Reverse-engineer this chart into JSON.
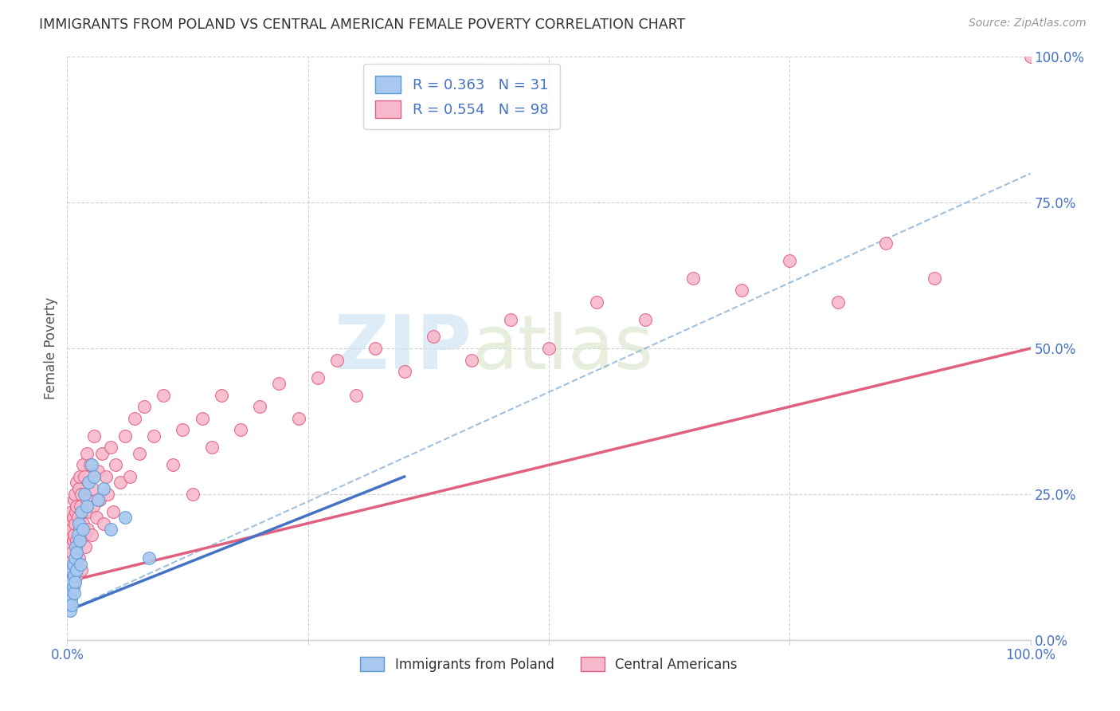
{
  "title": "IMMIGRANTS FROM POLAND VS CENTRAL AMERICAN FEMALE POVERTY CORRELATION CHART",
  "source": "Source: ZipAtlas.com",
  "ylabel": "Female Poverty",
  "xlim": [
    0,
    1
  ],
  "ylim": [
    0,
    1
  ],
  "poland_color_fill": "#a8c8f0",
  "poland_color_edge": "#5b9bd5",
  "central_color_fill": "#f8b8cc",
  "central_color_edge": "#e06080",
  "poland_R": 0.363,
  "poland_N": 31,
  "central_R": 0.554,
  "central_N": 98,
  "label_color": "#4472c4",
  "background_color": "#ffffff",
  "grid_color": "#d0d0d0",
  "dashed_line_color": "#8ab0d8",
  "poland_line_color": "#4472c4",
  "central_line_color": "#e06080",
  "watermark_color": "#d0e4f4",
  "poland_x": [
    0.002,
    0.003,
    0.004,
    0.004,
    0.005,
    0.005,
    0.006,
    0.006,
    0.007,
    0.007,
    0.008,
    0.008,
    0.009,
    0.01,
    0.01,
    0.011,
    0.012,
    0.013,
    0.014,
    0.015,
    0.016,
    0.018,
    0.02,
    0.022,
    0.025,
    0.028,
    0.032,
    0.038,
    0.045,
    0.06,
    0.085
  ],
  "poland_y": [
    0.08,
    0.05,
    0.07,
    0.1,
    0.06,
    0.12,
    0.09,
    0.13,
    0.11,
    0.08,
    0.14,
    0.1,
    0.16,
    0.12,
    0.15,
    0.18,
    0.2,
    0.17,
    0.13,
    0.22,
    0.19,
    0.25,
    0.23,
    0.27,
    0.3,
    0.28,
    0.24,
    0.26,
    0.19,
    0.21,
    0.14
  ],
  "central_x": [
    0.002,
    0.002,
    0.003,
    0.003,
    0.004,
    0.004,
    0.004,
    0.005,
    0.005,
    0.005,
    0.005,
    0.006,
    0.006,
    0.006,
    0.007,
    0.007,
    0.007,
    0.008,
    0.008,
    0.008,
    0.009,
    0.009,
    0.01,
    0.01,
    0.01,
    0.01,
    0.011,
    0.011,
    0.012,
    0.012,
    0.013,
    0.013,
    0.014,
    0.014,
    0.015,
    0.015,
    0.016,
    0.016,
    0.017,
    0.018,
    0.018,
    0.019,
    0.02,
    0.02,
    0.021,
    0.022,
    0.023,
    0.024,
    0.025,
    0.026,
    0.027,
    0.028,
    0.03,
    0.032,
    0.034,
    0.036,
    0.038,
    0.04,
    0.042,
    0.045,
    0.048,
    0.05,
    0.055,
    0.06,
    0.065,
    0.07,
    0.075,
    0.08,
    0.09,
    0.1,
    0.11,
    0.12,
    0.13,
    0.14,
    0.15,
    0.16,
    0.18,
    0.2,
    0.22,
    0.24,
    0.26,
    0.28,
    0.3,
    0.32,
    0.35,
    0.38,
    0.42,
    0.46,
    0.5,
    0.55,
    0.6,
    0.65,
    0.7,
    0.75,
    0.8,
    0.85,
    0.9,
    1.0
  ],
  "central_y": [
    0.1,
    0.14,
    0.08,
    0.18,
    0.12,
    0.16,
    0.2,
    0.09,
    0.15,
    0.19,
    0.22,
    0.11,
    0.17,
    0.21,
    0.13,
    0.18,
    0.24,
    0.1,
    0.2,
    0.25,
    0.14,
    0.22,
    0.11,
    0.17,
    0.23,
    0.27,
    0.16,
    0.21,
    0.14,
    0.26,
    0.19,
    0.28,
    0.17,
    0.23,
    0.12,
    0.25,
    0.2,
    0.3,
    0.22,
    0.18,
    0.28,
    0.16,
    0.24,
    0.32,
    0.19,
    0.27,
    0.22,
    0.3,
    0.18,
    0.26,
    0.23,
    0.35,
    0.21,
    0.29,
    0.24,
    0.32,
    0.2,
    0.28,
    0.25,
    0.33,
    0.22,
    0.3,
    0.27,
    0.35,
    0.28,
    0.38,
    0.32,
    0.4,
    0.35,
    0.42,
    0.3,
    0.36,
    0.25,
    0.38,
    0.33,
    0.42,
    0.36,
    0.4,
    0.44,
    0.38,
    0.45,
    0.48,
    0.42,
    0.5,
    0.46,
    0.52,
    0.48,
    0.55,
    0.5,
    0.58,
    0.55,
    0.62,
    0.6,
    0.65,
    0.58,
    0.68,
    0.62,
    1.0
  ],
  "poland_line_x": [
    0.0,
    0.35
  ],
  "poland_line_y": [
    0.05,
    0.28
  ],
  "central_line_x": [
    0.0,
    1.0
  ],
  "central_line_y": [
    0.1,
    0.5
  ],
  "dashed_line_x": [
    0.0,
    1.0
  ],
  "dashed_line_y": [
    0.05,
    0.8
  ]
}
